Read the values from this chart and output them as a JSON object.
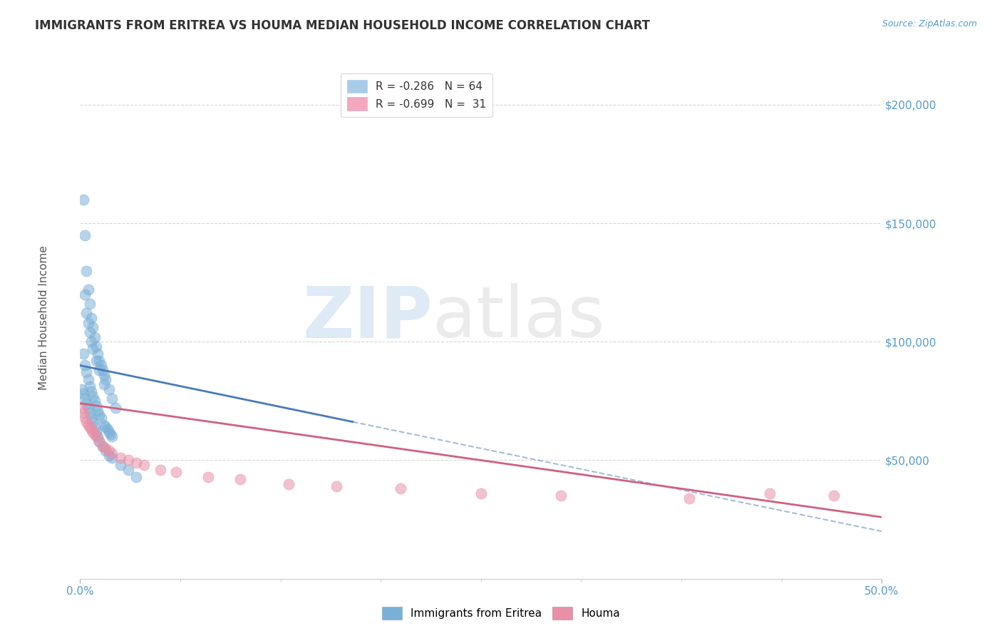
{
  "title": "IMMIGRANTS FROM ERITREA VS HOUMA MEDIAN HOUSEHOLD INCOME CORRELATION CHART",
  "source": "Source: ZipAtlas.com",
  "ylabel": "Median Household Income",
  "xlim": [
    0.0,
    0.5
  ],
  "ylim": [
    0,
    220000
  ],
  "yticks": [
    0,
    50000,
    100000,
    150000,
    200000
  ],
  "legend_lines": [
    {
      "label": "R = -0.286   N = 64",
      "color": "#a8cce8"
    },
    {
      "label": "R = -0.699   N =  31",
      "color": "#f4a8be"
    }
  ],
  "watermark_zip": "ZIP",
  "watermark_atlas": "atlas",
  "blue_scatter_color": "#7ab0d8",
  "pink_scatter_color": "#e890a8",
  "blue_line_color": "#4a7ab8",
  "pink_line_color": "#d06080",
  "background_color": "#ffffff",
  "grid_color": "#d8d8d8",
  "ytick_color": "#5599cc",
  "title_color": "#333333",
  "source_color": "#5599cc",
  "blue_scatter_x": [
    0.002,
    0.003,
    0.004,
    0.005,
    0.006,
    0.007,
    0.008,
    0.009,
    0.01,
    0.011,
    0.012,
    0.013,
    0.014,
    0.015,
    0.016,
    0.018,
    0.02,
    0.022,
    0.003,
    0.004,
    0.005,
    0.006,
    0.007,
    0.008,
    0.01,
    0.012,
    0.015,
    0.002,
    0.003,
    0.004,
    0.005,
    0.006,
    0.007,
    0.008,
    0.009,
    0.01,
    0.011,
    0.012,
    0.013,
    0.015,
    0.016,
    0.017,
    0.018,
    0.019,
    0.02,
    0.001,
    0.002,
    0.003,
    0.004,
    0.005,
    0.006,
    0.007,
    0.008,
    0.009,
    0.01,
    0.011,
    0.012,
    0.014,
    0.016,
    0.018,
    0.02,
    0.025,
    0.03,
    0.035
  ],
  "blue_scatter_y": [
    160000,
    145000,
    130000,
    122000,
    116000,
    110000,
    106000,
    102000,
    98000,
    95000,
    92000,
    90000,
    88000,
    86000,
    84000,
    80000,
    76000,
    72000,
    120000,
    112000,
    108000,
    104000,
    100000,
    97000,
    92000,
    88000,
    82000,
    95000,
    90000,
    87000,
    84000,
    81000,
    79000,
    77000,
    75000,
    73000,
    71000,
    69000,
    68000,
    65000,
    64000,
    63000,
    62000,
    61000,
    60000,
    80000,
    78000,
    76000,
    74000,
    72000,
    70000,
    68000,
    66000,
    64000,
    62000,
    60000,
    58000,
    56000,
    54000,
    52000,
    51000,
    48000,
    46000,
    43000
  ],
  "pink_scatter_x": [
    0.001,
    0.002,
    0.003,
    0.004,
    0.005,
    0.006,
    0.007,
    0.008,
    0.009,
    0.01,
    0.012,
    0.014,
    0.016,
    0.018,
    0.02,
    0.025,
    0.03,
    0.035,
    0.04,
    0.05,
    0.06,
    0.08,
    0.1,
    0.13,
    0.16,
    0.2,
    0.25,
    0.3,
    0.38,
    0.43,
    0.47
  ],
  "pink_scatter_y": [
    72000,
    70000,
    68000,
    66000,
    65000,
    64000,
    63000,
    62000,
    61000,
    60000,
    58000,
    56000,
    55000,
    54000,
    53000,
    51000,
    50000,
    49000,
    48000,
    46000,
    45000,
    43000,
    42000,
    40000,
    39000,
    38000,
    36000,
    35000,
    34000,
    36000,
    35000
  ],
  "blue_trend_x0": 0.0,
  "blue_trend_x1": 0.5,
  "blue_trend_y0": 90000,
  "blue_trend_y1": 20000,
  "pink_trend_x0": 0.0,
  "pink_trend_x1": 0.5,
  "pink_trend_y0": 74000,
  "pink_trend_y1": 26000
}
